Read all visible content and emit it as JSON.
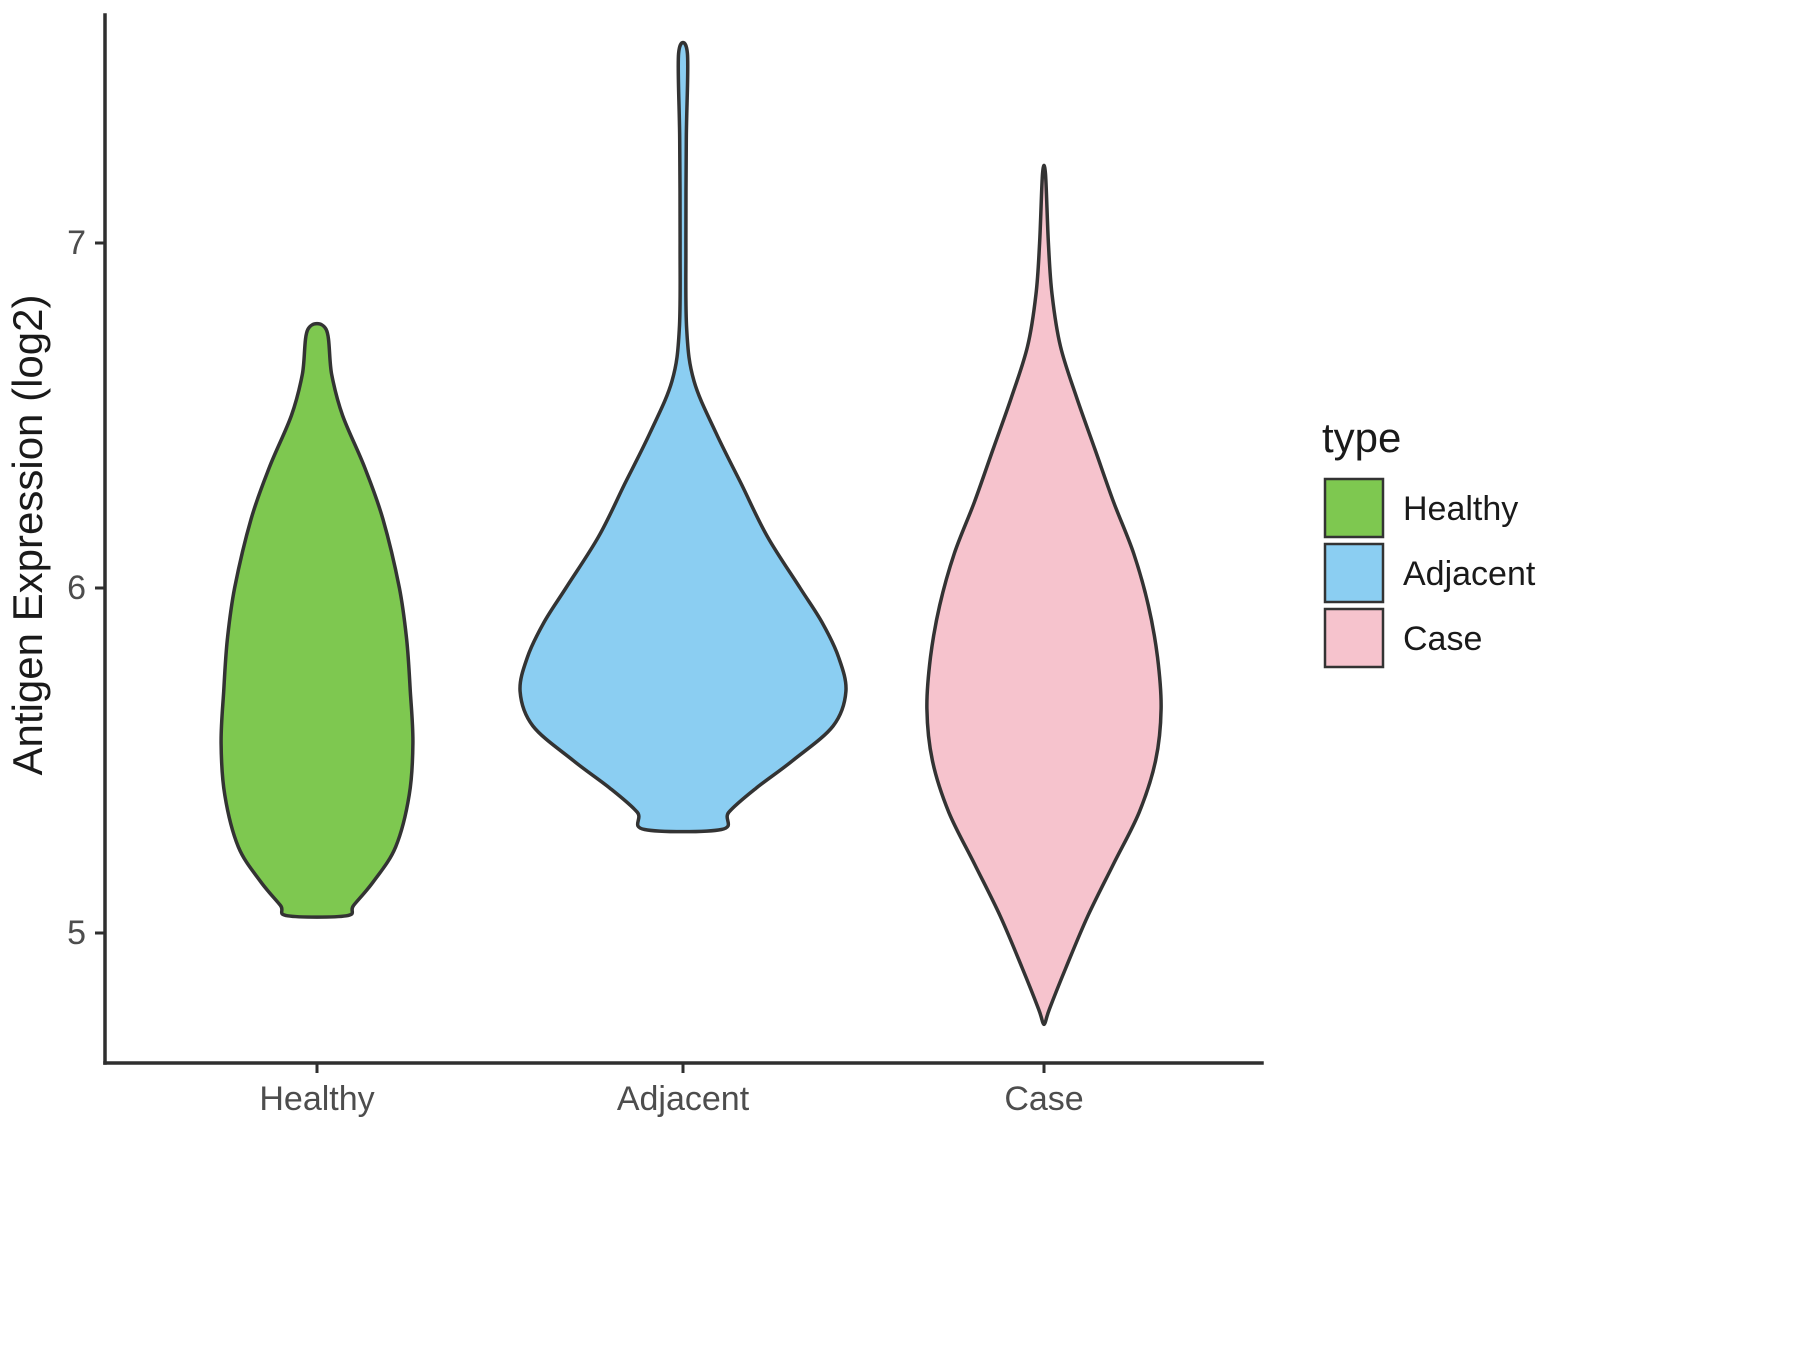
{
  "chart_data": {
    "type": "violin",
    "title": "",
    "xlabel": "",
    "ylabel": "Antigen Expression (log2)",
    "categories": [
      "Healthy",
      "Adjacent",
      "Case"
    ],
    "y_ticks": [
      5,
      6,
      7
    ],
    "ylim": [
      4.6,
      7.65
    ],
    "grid": false,
    "outline_color": "#333333",
    "axis_text_color": "#4d4d4d",
    "legend": {
      "title": "type",
      "position": "right",
      "entries": [
        {
          "label": "Healthy",
          "color": "#7EC850"
        },
        {
          "label": "Adjacent",
          "color": "#8BCEF2"
        },
        {
          "label": "Case",
          "color": "#F6C3CD"
        }
      ]
    },
    "series": [
      {
        "name": "Healthy",
        "color": "#7EC850",
        "summary": {
          "min": 5.05,
          "max": 6.75,
          "widest_at": 5.55
        },
        "profile": [
          [
            6.75,
            0.025
          ],
          [
            6.62,
            0.04
          ],
          [
            6.5,
            0.07
          ],
          [
            6.35,
            0.13
          ],
          [
            6.2,
            0.18
          ],
          [
            6.0,
            0.225
          ],
          [
            5.85,
            0.245
          ],
          [
            5.7,
            0.255
          ],
          [
            5.55,
            0.262
          ],
          [
            5.4,
            0.252
          ],
          [
            5.25,
            0.215
          ],
          [
            5.15,
            0.155
          ],
          [
            5.08,
            0.1
          ],
          [
            5.05,
            0.08
          ]
        ]
      },
      {
        "name": "Adjacent",
        "color": "#8BCEF2",
        "summary": {
          "min": 5.3,
          "max": 7.55,
          "widest_at": 5.7
        },
        "profile": [
          [
            7.55,
            0.012
          ],
          [
            7.3,
            0.009
          ],
          [
            7.0,
            0.008
          ],
          [
            6.75,
            0.01
          ],
          [
            6.6,
            0.03
          ],
          [
            6.45,
            0.09
          ],
          [
            6.3,
            0.16
          ],
          [
            6.15,
            0.23
          ],
          [
            6.0,
            0.32
          ],
          [
            5.9,
            0.38
          ],
          [
            5.8,
            0.425
          ],
          [
            5.7,
            0.445
          ],
          [
            5.6,
            0.41
          ],
          [
            5.5,
            0.3
          ],
          [
            5.42,
            0.2
          ],
          [
            5.35,
            0.125
          ],
          [
            5.3,
            0.105
          ]
        ]
      },
      {
        "name": "Case",
        "color": "#F6C3CD",
        "summary": {
          "min": 4.74,
          "max": 7.2,
          "widest_at": 5.65
        },
        "profile": [
          [
            7.2,
            0.004
          ],
          [
            7.0,
            0.012
          ],
          [
            6.85,
            0.022
          ],
          [
            6.7,
            0.045
          ],
          [
            6.55,
            0.09
          ],
          [
            6.4,
            0.14
          ],
          [
            6.25,
            0.19
          ],
          [
            6.1,
            0.245
          ],
          [
            5.95,
            0.285
          ],
          [
            5.8,
            0.31
          ],
          [
            5.65,
            0.32
          ],
          [
            5.5,
            0.305
          ],
          [
            5.35,
            0.26
          ],
          [
            5.2,
            0.19
          ],
          [
            5.05,
            0.12
          ],
          [
            4.9,
            0.06
          ],
          [
            4.78,
            0.015
          ],
          [
            4.74,
            0.003
          ]
        ]
      }
    ]
  }
}
